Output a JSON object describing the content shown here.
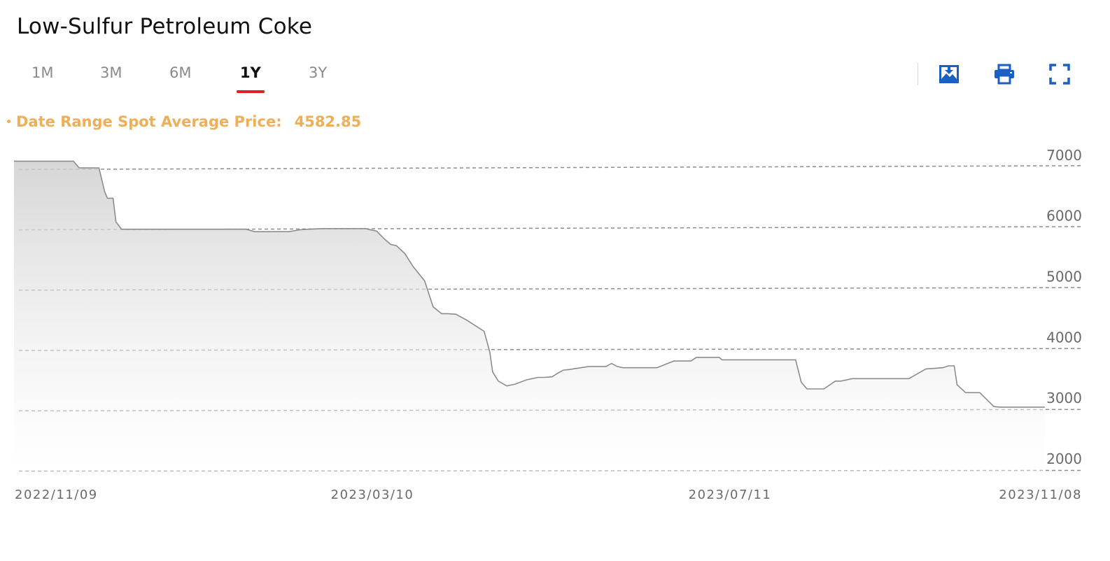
{
  "title": "Low-Sulfur Petroleum Coke",
  "tabs": [
    "1M",
    "3M",
    "6M",
    "1Y",
    "3Y"
  ],
  "active_tab": "1Y",
  "toolbar": {
    "icons": [
      "download-image-icon",
      "print-icon",
      "fullscreen-icon"
    ],
    "color": "#1a5fc4"
  },
  "summary": {
    "label": "Date Range Spot Average Price:",
    "value": "4582.85",
    "color": "#f0ae57"
  },
  "chart_data": {
    "type": "area",
    "title": "",
    "xlabel": "",
    "ylabel": "",
    "x_ticks": [
      "2022/11/09",
      "2023/03/10",
      "2023/07/11",
      "2023/11/08"
    ],
    "y_ticks": [
      2000,
      3000,
      4000,
      5000,
      6000,
      7000
    ],
    "ylim": [
      2000,
      7000
    ],
    "grid": "horizontal dashed",
    "line_color": "#8c8c8c",
    "series": [
      {
        "x": [
          "2022/11/09",
          "2022/11/30",
          "2022/12/02",
          "2022/12/09",
          "2022/12/11",
          "2022/12/12",
          "2022/12/14",
          "2022/12/15",
          "2022/12/17",
          "2022/12/23",
          "2023/01/30",
          "2023/02/02",
          "2023/02/14",
          "2023/02/18",
          "2023/02/21",
          "2023/02/26",
          "2023/03/02",
          "2023/03/13",
          "2023/03/17",
          "2023/03/20",
          "2023/03/22",
          "2023/03/24",
          "2023/03/27",
          "2023/03/30",
          "2023/04/03",
          "2023/04/06",
          "2023/04/09",
          "2023/04/11",
          "2023/04/14",
          "2023/04/18",
          "2023/04/24",
          "2023/04/26",
          "2023/04/27",
          "2023/04/29",
          "2023/05/02",
          "2023/05/05",
          "2023/05/09",
          "2023/05/13",
          "2023/05/15",
          "2023/05/18",
          "2023/05/20",
          "2023/05/22",
          "2023/05/24",
          "2023/05/31",
          "2023/06/06",
          "2023/06/08",
          "2023/06/10",
          "2023/06/12",
          "2023/06/24",
          "2023/06/30",
          "2023/07/06",
          "2023/07/08",
          "2023/07/16",
          "2023/07/17",
          "2023/08/12",
          "2023/08/14",
          "2023/08/16",
          "2023/08/22",
          "2023/08/26",
          "2023/08/28",
          "2023/09/01",
          "2023/09/03",
          "2023/09/21",
          "2023/09/24",
          "2023/09/27",
          "2023/10/03",
          "2023/10/05",
          "2023/10/07",
          "2023/10/08",
          "2023/10/11",
          "2023/10/16",
          "2023/10/21",
          "2023/10/23",
          "2023/11/08"
        ],
        "values": [
          7120,
          7120,
          7010,
          7010,
          6620,
          6510,
          6510,
          6120,
          6000,
          6000,
          6000,
          5960,
          5960,
          5990,
          6000,
          6010,
          6010,
          6010,
          5970,
          5830,
          5750,
          5730,
          5600,
          5380,
          5150,
          4720,
          4610,
          4610,
          4600,
          4500,
          4320,
          3980,
          3650,
          3500,
          3420,
          3450,
          3520,
          3560,
          3560,
          3570,
          3630,
          3680,
          3690,
          3740,
          3740,
          3790,
          3740,
          3720,
          3720,
          3830,
          3830,
          3890,
          3890,
          3850,
          3850,
          3480,
          3370,
          3370,
          3500,
          3500,
          3540,
          3540,
          3540,
          3620,
          3700,
          3720,
          3750,
          3750,
          3440,
          3310,
          3310,
          3080,
          3070,
          3070
        ]
      }
    ]
  }
}
